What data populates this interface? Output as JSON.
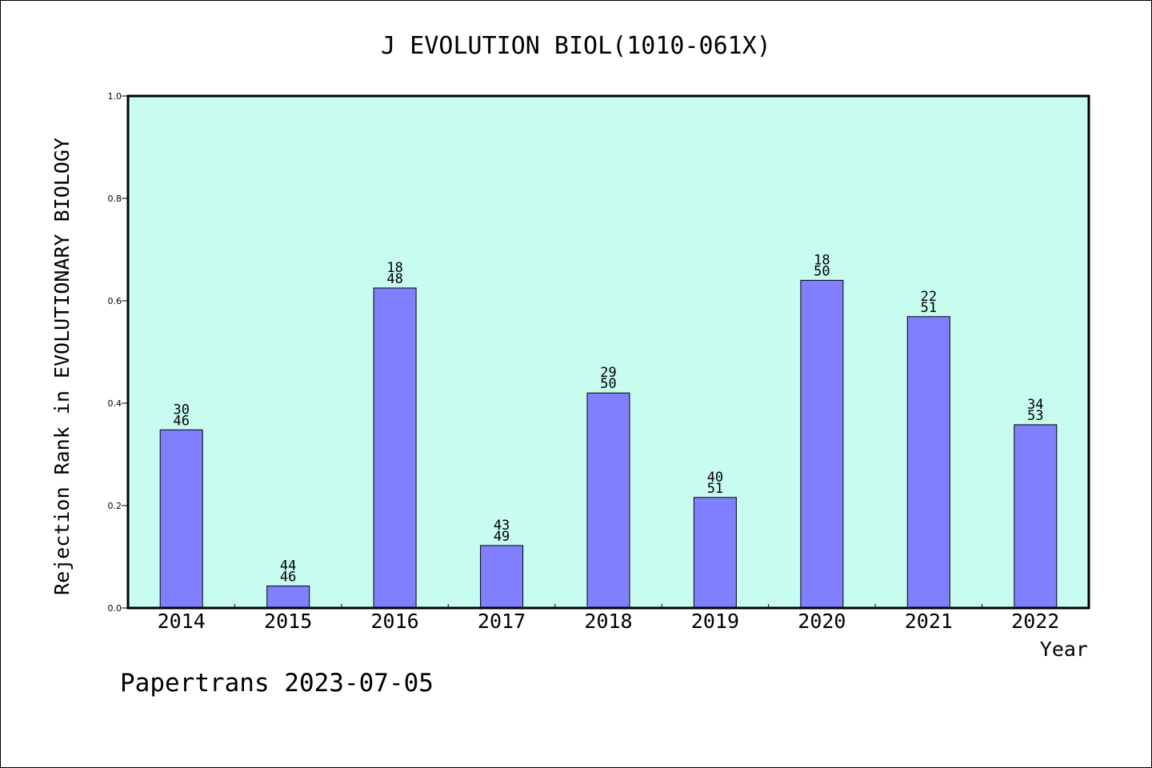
{
  "chart_data": {
    "type": "bar",
    "title": "J EVOLUTION BIOL(1010-061X)",
    "ylabel": "Rejection Rank in EVOLUTIONARY BIOLOGY",
    "xlabel": "Year",
    "categories": [
      "2014",
      "2015",
      "2016",
      "2017",
      "2018",
      "2019",
      "2020",
      "2021",
      "2022"
    ],
    "values": [
      0.348,
      0.043,
      0.625,
      0.122,
      0.42,
      0.216,
      0.64,
      0.569,
      0.358
    ],
    "labels_top": [
      "30",
      "44",
      "18",
      "43",
      "29",
      "40",
      "18",
      "22",
      "34"
    ],
    "labels_bottom": [
      "46",
      "46",
      "48",
      "49",
      "50",
      "51",
      "50",
      "51",
      "53"
    ],
    "ylim": [
      0,
      1.0
    ],
    "yticks": [
      "0.0",
      "0.2",
      "0.4",
      "0.6",
      "0.8",
      "1.0"
    ],
    "grid": false,
    "colors": {
      "plot_bg": "#c8fcee",
      "bar": "#8080ff"
    }
  },
  "footer": "Papertrans 2023-07-05"
}
